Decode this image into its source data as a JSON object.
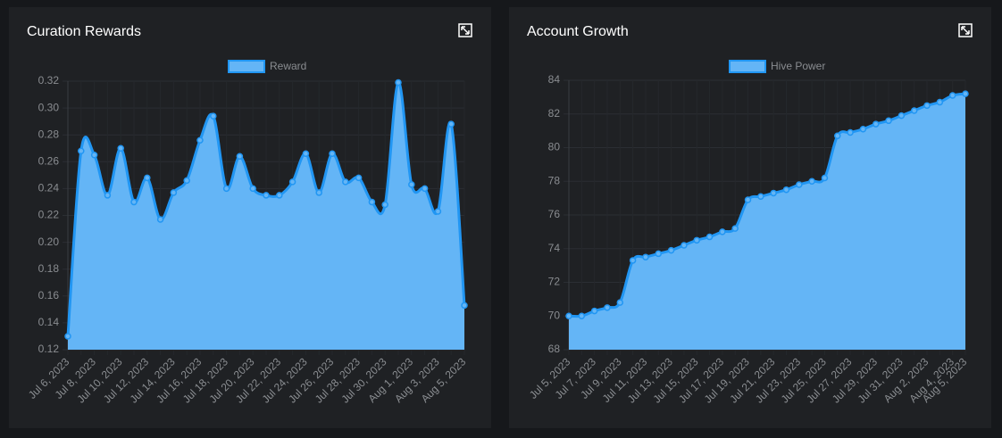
{
  "chart_data": [
    {
      "type": "line",
      "title": "Curation Rewards",
      "categories": [
        "Jul 6, 2023",
        null,
        "Jul 8, 2023",
        null,
        "Jul 10, 2023",
        null,
        "Jul 12, 2023",
        null,
        "Jul 14, 2023",
        null,
        "Jul 16, 2023",
        null,
        "Jul 18, 2023",
        null,
        "Jul 20, 2023",
        null,
        "Jul 22, 2023",
        null,
        "Jul 24, 2023",
        null,
        "Jul 26, 2023",
        null,
        "Jul 28, 2023",
        null,
        "Jul 30, 2023",
        null,
        "Aug 1, 2023",
        null,
        "Aug 3, 2023",
        null,
        "Aug 5, 2023"
      ],
      "series": [
        {
          "name": "Reward",
          "color": "#2196f3",
          "fill": "#64b5f6",
          "values": [
            0.13,
            0.268,
            0.265,
            0.235,
            0.27,
            0.23,
            0.248,
            0.217,
            0.237,
            0.246,
            0.276,
            0.294,
            0.24,
            0.264,
            0.24,
            0.235,
            0.235,
            0.245,
            0.266,
            0.237,
            0.266,
            0.245,
            0.248,
            0.23,
            0.228,
            0.319,
            0.243,
            0.24,
            0.223,
            0.288,
            0.153
          ]
        }
      ],
      "ylim": [
        0.12,
        0.32
      ],
      "yticks": [
        0.12,
        0.14,
        0.16,
        0.18,
        {
          "value": 0.2,
          "label": "0.20"
        },
        0.22,
        0.24,
        0.26,
        0.28,
        {
          "value": 0.3,
          "label": "0.30"
        },
        0.32
      ],
      "grid": true,
      "legend": "top"
    },
    {
      "type": "line",
      "title": "Account Growth",
      "categories": [
        "Jul 5, 2023",
        null,
        "Jul 7, 2023",
        null,
        "Jul 9, 2023",
        null,
        "Jul 11, 2023",
        null,
        "Jul 13, 2023",
        null,
        "Jul 15, 2023",
        null,
        "Jul 17, 2023",
        null,
        "Jul 19, 2023",
        null,
        "Jul 21, 2023",
        null,
        "Jul 23, 2023",
        null,
        "Jul 25, 2023",
        null,
        "Jul 27, 2023",
        null,
        "Jul 29, 2023",
        null,
        "Jul 31, 2023",
        null,
        "Aug 2, 2023",
        null,
        "Aug 4, 2023",
        "Aug 5, 2023"
      ],
      "series": [
        {
          "name": "Hive Power",
          "color": "#2196f3",
          "fill": "#64b5f6",
          "values": [
            70.0,
            70.0,
            70.3,
            70.5,
            70.8,
            73.3,
            73.5,
            73.7,
            73.9,
            74.2,
            74.5,
            74.7,
            75.0,
            75.2,
            76.9,
            77.1,
            77.3,
            77.5,
            77.8,
            78.0,
            78.2,
            80.7,
            80.9,
            81.1,
            81.4,
            81.6,
            81.9,
            82.2,
            82.5,
            82.7,
            83.1,
            83.2
          ]
        }
      ],
      "ylim": [
        68,
        84
      ],
      "yticks": [
        68,
        70,
        72,
        74,
        76,
        78,
        80,
        82,
        84
      ],
      "grid": true,
      "legend": "top"
    }
  ]
}
